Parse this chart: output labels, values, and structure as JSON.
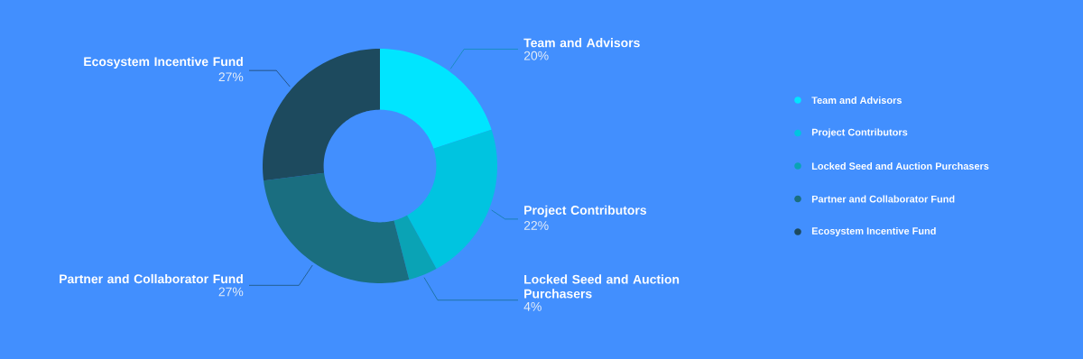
{
  "chart_data": {
    "type": "donut",
    "categories": [
      "Team and Advisors",
      "Project Contributors",
      "Locked Seed and Auction Purchasers",
      "Partner and Collaborator Fund",
      "Ecosystem Incentive Fund"
    ],
    "values": [
      20,
      22,
      4,
      27,
      27
    ],
    "colors": [
      "#00e5ff",
      "#00c4e0",
      "#0aa3b5",
      "#1a6e80",
      "#1d4a5e"
    ],
    "value_labels": [
      "20%",
      "22%",
      "4%",
      "27%",
      "27%"
    ],
    "legend": "right"
  }
}
